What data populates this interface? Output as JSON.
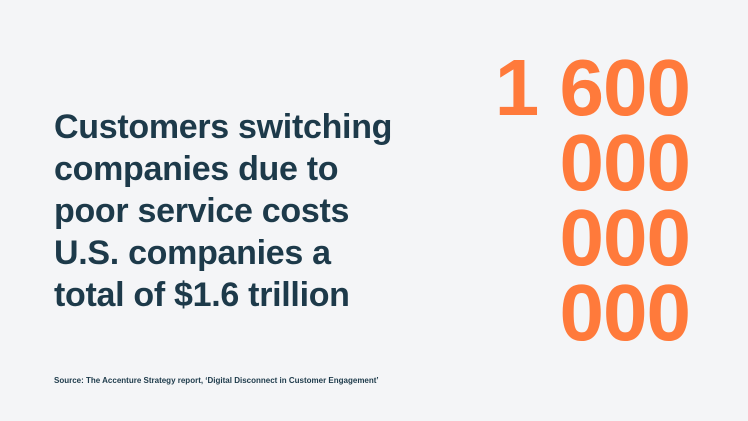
{
  "headline": {
    "lines": [
      "Customers switching",
      "companies due to",
      "poor service costs",
      "U.S. companies a",
      "total of $1.6 trillion"
    ]
  },
  "figure": {
    "lines": [
      "1 600",
      "000",
      "000",
      "000"
    ]
  },
  "source": "Source: The Accenture Strategy report, ‘Digital Disconnect in Customer Engagement’"
}
